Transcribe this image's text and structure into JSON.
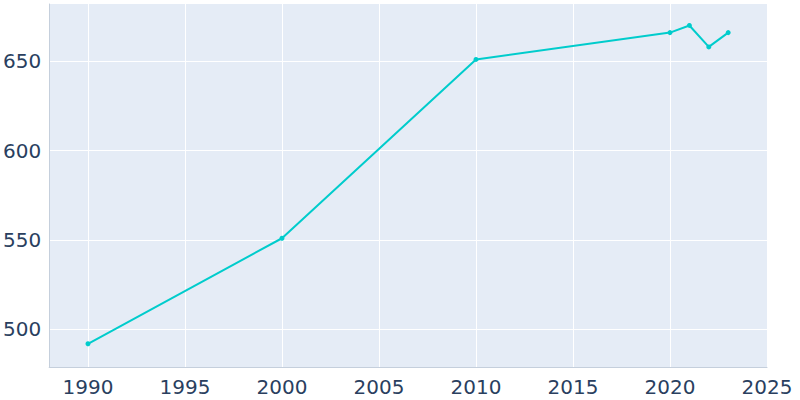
{
  "chart_data": {
    "type": "line",
    "x": [
      1990,
      2000,
      2010,
      2020,
      2021,
      2022,
      2023
    ],
    "values": [
      492,
      551,
      651,
      666,
      670,
      658,
      666
    ],
    "color": "#00cccc",
    "marker": "circle",
    "xlim": [
      1988,
      2025
    ],
    "xticks": [
      1990,
      1995,
      2000,
      2005,
      2010,
      2015,
      2020,
      2025
    ],
    "ylim": [
      479,
      682
    ],
    "yticks": [
      500,
      550,
      600,
      650
    ],
    "grid": true
  }
}
